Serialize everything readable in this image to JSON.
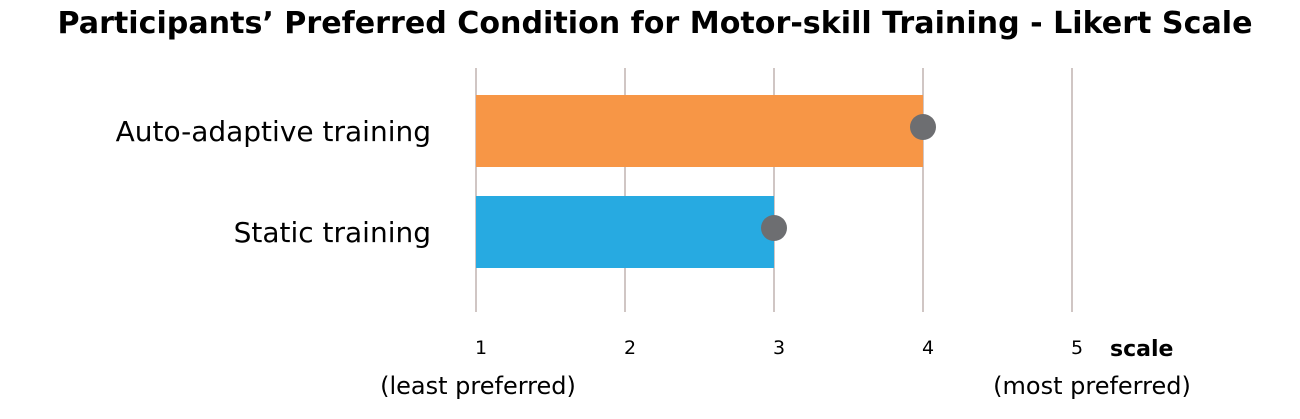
{
  "chart_data": {
    "type": "bar",
    "orientation": "horizontal",
    "title": "Participants’ Preferred Condition for Motor-skill Training - Likert Scale",
    "categories": [
      "Auto-adaptive training",
      "Static training"
    ],
    "values": [
      4,
      3
    ],
    "markers": [
      4,
      3
    ],
    "bar_colors": [
      "#F79646",
      "#27AAE1"
    ],
    "marker_color": "#6D6E71",
    "gridline_color": "#A08E88",
    "xlim": [
      1,
      5
    ],
    "xticks": [
      1,
      2,
      3,
      4,
      5
    ],
    "xlabel": "scale",
    "xlabel_min_note": "(least preferred)",
    "xlabel_max_note": "(most preferred)",
    "ylabel": "",
    "grid": true,
    "legend": "none"
  }
}
